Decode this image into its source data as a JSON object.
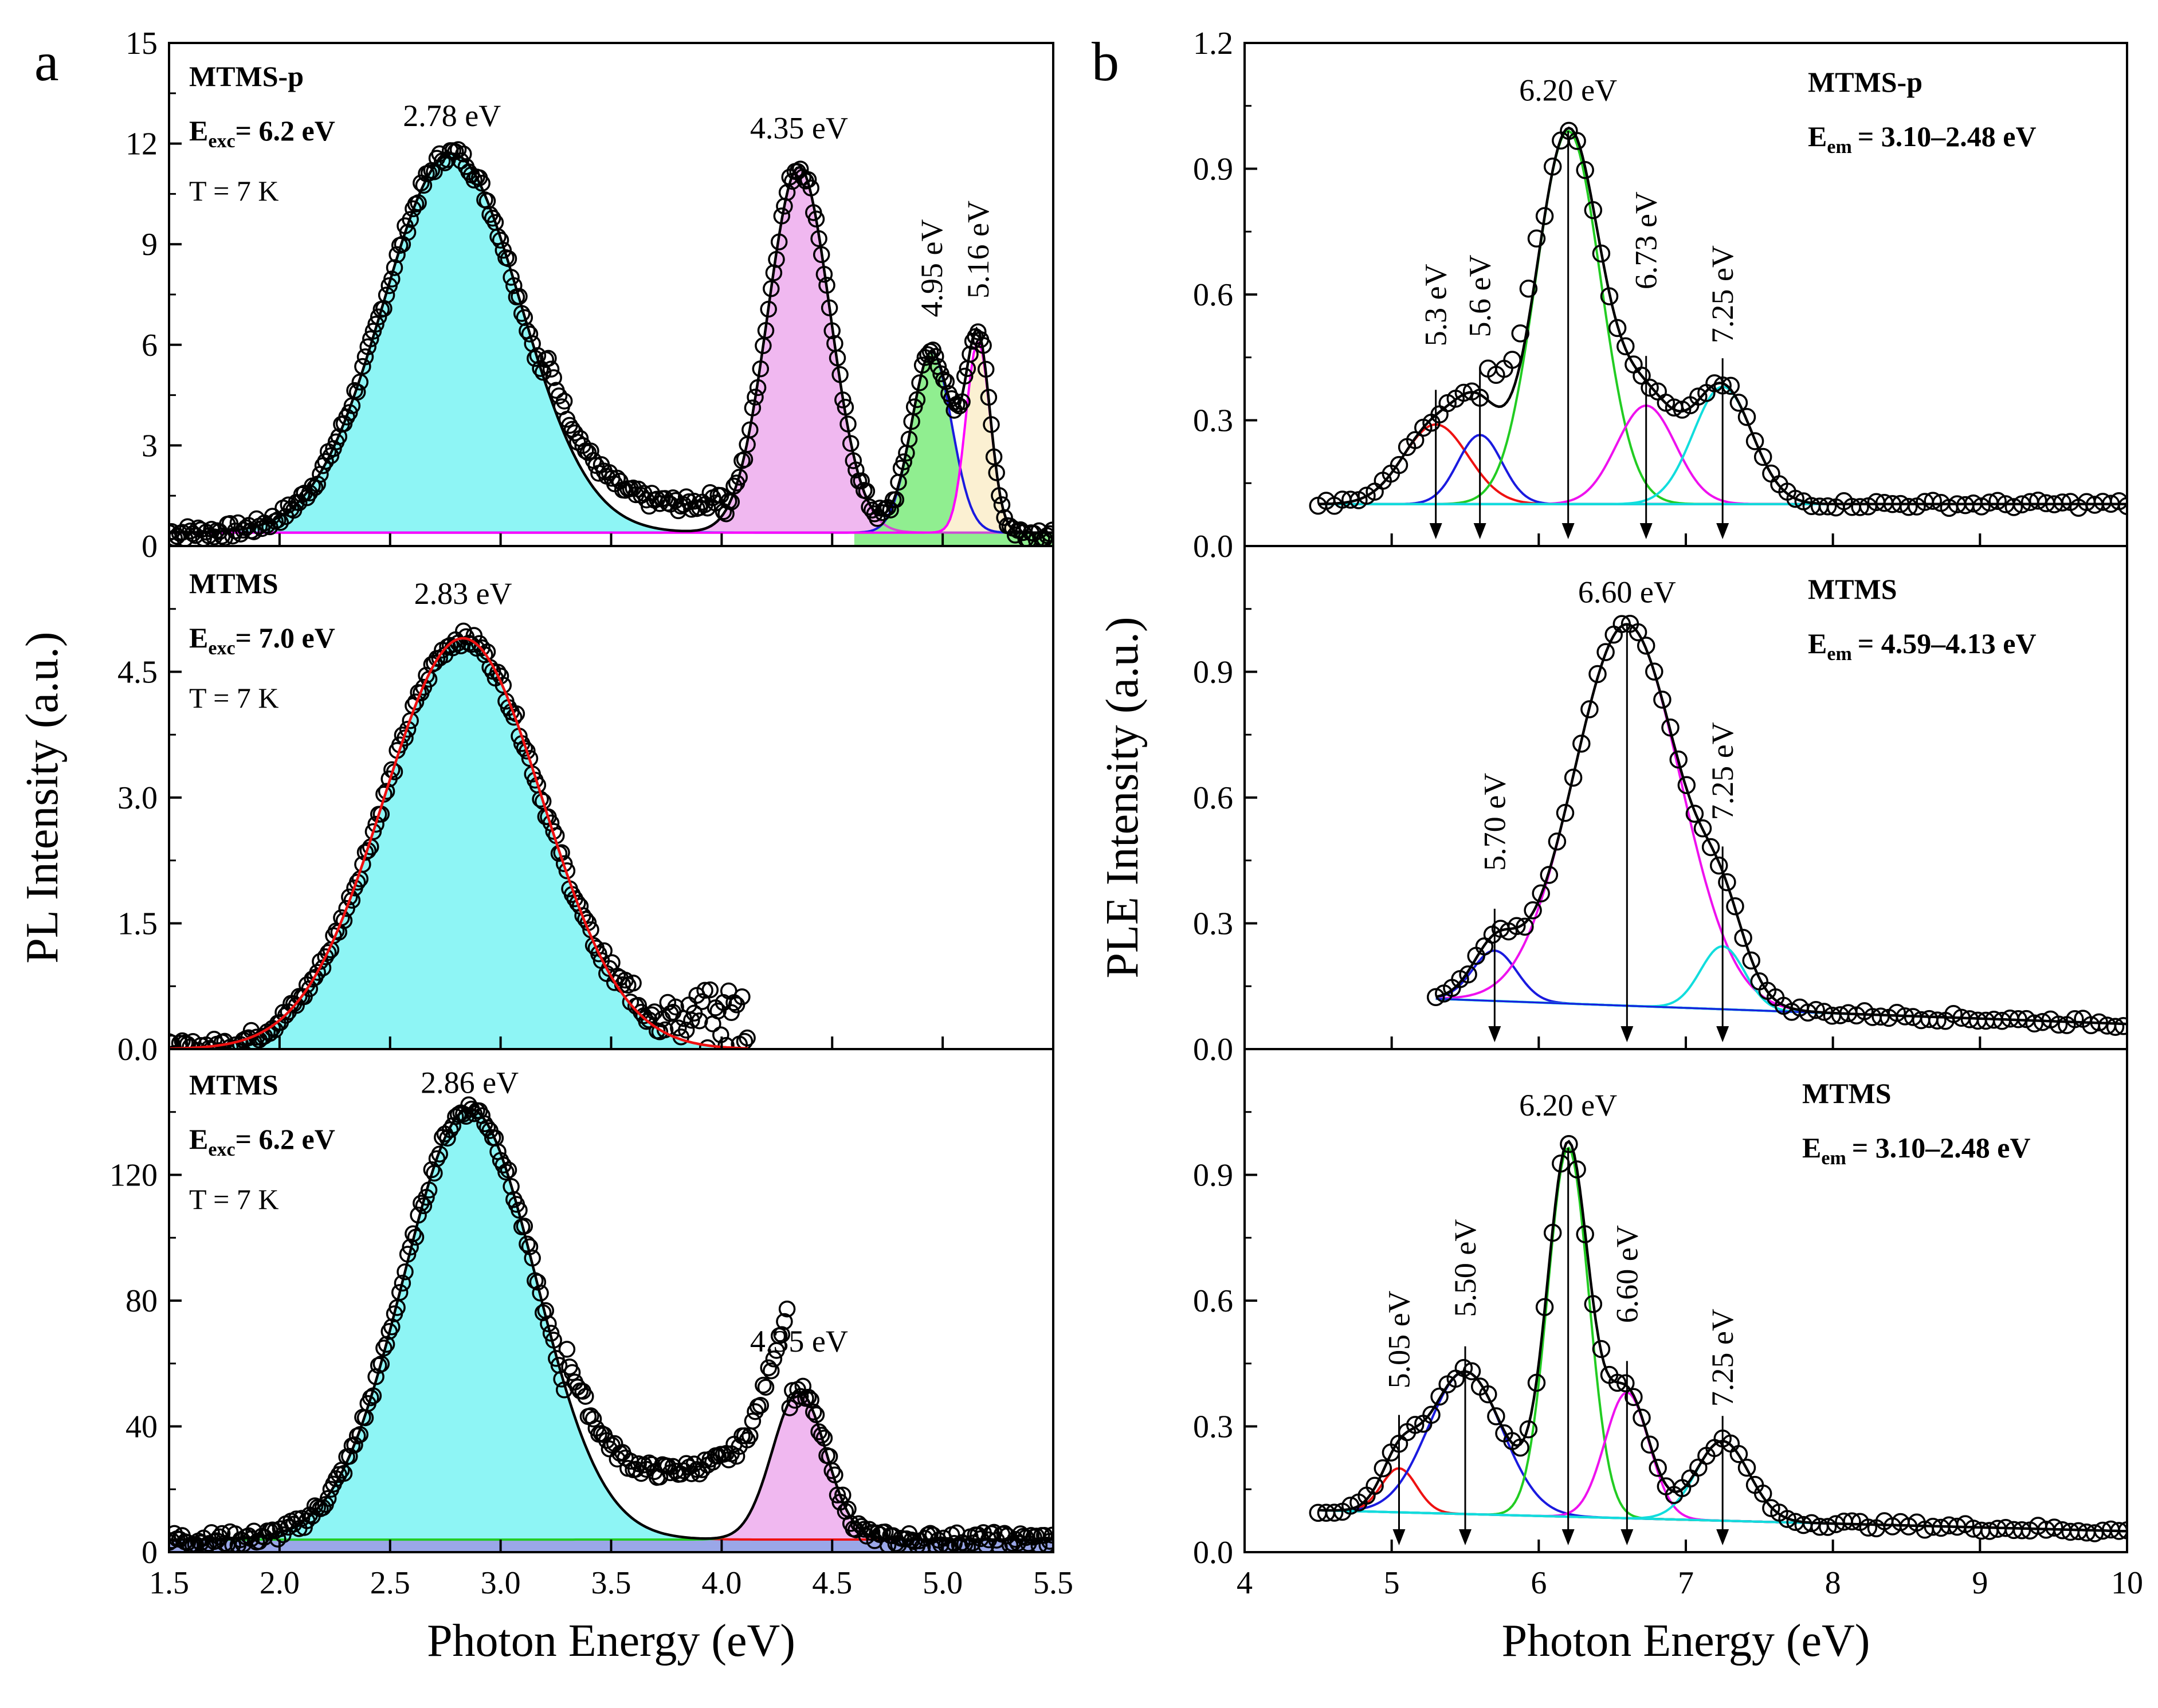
{
  "chart_data": [
    {
      "panel": "a",
      "type": "line",
      "xlabel": "Photon Energy (eV)",
      "ylabel": "PL Intensity (a.u.)",
      "xlim": [
        1.5,
        5.5
      ],
      "xticks": [
        "1.5",
        "2.0",
        "2.5",
        "3.0",
        "3.5",
        "4.0",
        "4.5",
        "5.0",
        "5.5"
      ],
      "subplots": [
        {
          "id": "a1",
          "sample": "MTMS-p",
          "excitation_prefix": "E",
          "excitation_sub": "exc",
          "excitation_value": "= 6.2 eV",
          "temperature": "T = 7 K",
          "ylim": [
            0,
            15
          ],
          "yticks": [
            "0",
            "3",
            "6",
            "9",
            "12",
            "15"
          ],
          "baseline": 0.4,
          "components": [
            {
              "center": 2.78,
              "width": 0.31,
              "amp": 11.3,
              "color": "#00e5e5",
              "fill": "#8ef5f5",
              "label": "2.78 eV",
              "label_rot": 0
            },
            {
              "center": 4.35,
              "width": 0.14,
              "amp": 10.9,
              "color": "#d24cd2",
              "fill": "#f0b8f0",
              "label": "4.35 eV",
              "label_rot": 0
            },
            {
              "center": 4.95,
              "width": 0.09,
              "amp": 5.4,
              "color": "#1a1adf",
              "fill": "#90ee90",
              "label": "4.95 eV",
              "label_rot": -90
            },
            {
              "center": 5.16,
              "width": 0.055,
              "amp": 5.7,
              "color": "#ff00ff",
              "fill": "#fbf0d2",
              "label": "5.16 eV",
              "label_rot": -90
            }
          ],
          "envelope_color": "#000000"
        },
        {
          "id": "a2",
          "sample": "MTMS",
          "excitation_prefix": "E",
          "excitation_sub": "exc",
          "excitation_value": "= 7.0 eV",
          "temperature": "T = 7 K",
          "ylim": [
            0,
            6.0
          ],
          "yticks": [
            "0.0",
            "1.5",
            "3.0",
            "4.5"
          ],
          "baseline": 0.0,
          "x_max": 4.12,
          "components": [
            {
              "center": 2.83,
              "width": 0.36,
              "amp": 4.9,
              "color": "#ee1111",
              "fill": "#8ef5f5",
              "label": "2.83 eV",
              "label_rot": 0
            }
          ],
          "envelope_color": "#ee1111"
        },
        {
          "id": "a3",
          "sample": "MTMS",
          "excitation_prefix": "E",
          "excitation_sub": "exc",
          "excitation_value": "= 6.2 eV",
          "temperature": "T = 7 K",
          "ylim": [
            0,
            160
          ],
          "yticks": [
            "0",
            "40",
            "80",
            "120"
          ],
          "baseline": 4.0,
          "components": [
            {
              "center": 2.86,
              "width": 0.3,
              "amp": 137,
              "color": "#ee1111",
              "fill": "#8ef5f5",
              "label": "2.86 eV",
              "label_rot": 0
            },
            {
              "center": 4.35,
              "width": 0.12,
              "amp": 47,
              "color": "#22cc22",
              "fill": "#f0b8f0",
              "label": "4.35 eV",
              "label_rot": 0
            }
          ],
          "envelope_color": "#000000"
        }
      ]
    },
    {
      "panel": "b",
      "type": "line",
      "xlabel": "Photon Energy (eV)",
      "ylabel": "PLE Intensity (a.u.)",
      "xlim": [
        4,
        10
      ],
      "xticks": [
        "4",
        "5",
        "6",
        "7",
        "8",
        "9",
        "10"
      ],
      "subplots": [
        {
          "id": "b1",
          "sample": "MTMS-p",
          "emission_prefix": "E",
          "emission_sub": "em",
          "emission_value": "= 3.10–2.48 eV",
          "ylim": [
            0,
            1.2
          ],
          "yticks": [
            "0.0",
            "0.3",
            "0.6",
            "0.9",
            "1.2"
          ],
          "x_min": 4.5,
          "baseline": 0.1,
          "components": [
            {
              "center": 5.3,
              "width": 0.22,
              "amp": 0.19,
              "color": "#ee1111",
              "label": "5.3 eV",
              "label_rot": -90
            },
            {
              "center": 5.6,
              "width": 0.15,
              "amp": 0.165,
              "color": "#1a1adf",
              "label": "5.6 eV",
              "label_rot": -90
            },
            {
              "center": 6.2,
              "width": 0.22,
              "amp": 0.89,
              "color": "#22cc22",
              "label": "6.20 eV",
              "label_rot": 0
            },
            {
              "center": 6.73,
              "width": 0.2,
              "amp": 0.235,
              "color": "#ee11ee",
              "label": "6.73 eV",
              "label_rot": -90
            },
            {
              "center": 7.25,
              "width": 0.2,
              "amp": 0.28,
              "color": "#11dddd",
              "label": "7.25 eV",
              "label_rot": -90
            }
          ]
        },
        {
          "id": "b2",
          "sample": "MTMS",
          "emission_prefix": "E",
          "emission_sub": "em",
          "emission_value": "= 4.59–4.13 eV",
          "ylim": [
            0,
            1.2
          ],
          "yticks": [
            "0.0",
            "0.3",
            "0.6",
            "0.9"
          ],
          "x_min": 5.3,
          "baseline_start": 0.12,
          "baseline_end": 0.06,
          "components": [
            {
              "center": 5.7,
              "width": 0.15,
              "amp": 0.12,
              "color": "#1a1adf",
              "label": "5.70 eV",
              "label_rot": -90
            },
            {
              "center": 6.6,
              "width": 0.36,
              "amp": 0.91,
              "color": "#ee11ee",
              "label": "6.60 eV",
              "label_rot": 0
            },
            {
              "center": 7.25,
              "width": 0.15,
              "amp": 0.15,
              "color": "#11dddd",
              "label": "7.25 eV",
              "label_rot": -90
            }
          ]
        },
        {
          "id": "b3",
          "sample": "MTMS",
          "emission_prefix": "E",
          "emission_sub": "em",
          "emission_value": "= 3.10–2.48 eV",
          "ylim": [
            0,
            1.2
          ],
          "yticks": [
            "0.0",
            "0.3",
            "0.6",
            "0.9"
          ],
          "x_min": 4.5,
          "baseline_start": 0.1,
          "baseline_end": 0.05,
          "components": [
            {
              "center": 5.05,
              "width": 0.12,
              "amp": 0.105,
              "color": "#ee1111",
              "label": "5.05 eV",
              "label_rot": -90
            },
            {
              "center": 5.5,
              "width": 0.25,
              "amp": 0.34,
              "color": "#1a1adf",
              "label": "5.50 eV",
              "label_rot": -90
            },
            {
              "center": 6.2,
              "width": 0.14,
              "amp": 0.88,
              "color": "#22cc22",
              "label": "6.20 eV",
              "label_rot": 0
            },
            {
              "center": 6.6,
              "width": 0.15,
              "amp": 0.3,
              "color": "#ee11ee",
              "label": "6.60 eV",
              "label_rot": -90
            },
            {
              "center": 7.25,
              "width": 0.18,
              "amp": 0.19,
              "color": "#11dddd",
              "label": "7.25 eV",
              "label_rot": -90
            }
          ]
        }
      ]
    }
  ]
}
